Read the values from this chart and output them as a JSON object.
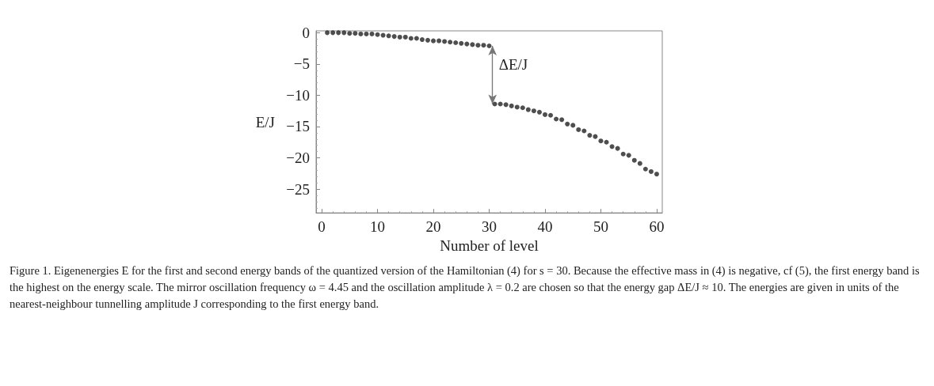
{
  "chart_data": {
    "type": "scatter",
    "xlabel": "Number of level",
    "ylabel": "E/J",
    "x": [
      1,
      2,
      3,
      4,
      5,
      6,
      7,
      8,
      9,
      10,
      11,
      12,
      13,
      14,
      15,
      16,
      17,
      18,
      19,
      20,
      21,
      22,
      23,
      24,
      25,
      26,
      27,
      28,
      29,
      30,
      31,
      32,
      33,
      34,
      35,
      36,
      37,
      38,
      39,
      40,
      41,
      42,
      43,
      44,
      45,
      46,
      47,
      48,
      49,
      50,
      51,
      52,
      53,
      54,
      55,
      56,
      57,
      58,
      59,
      60
    ],
    "series": [
      {
        "color": "#222222",
        "values": [
          0,
          0,
          0,
          0,
          -0.1,
          -0.1,
          -0.2,
          -0.2,
          -0.2,
          -0.3,
          -0.4,
          -0.5,
          -0.6,
          -0.7,
          -0.7,
          -0.9,
          -0.9,
          -1.1,
          -1.2,
          -1.3,
          -1.3,
          -1.4,
          -1.5,
          -1.6,
          -1.7,
          -1.8,
          -1.9,
          -2.0,
          -2.0,
          -2.1,
          -11.4,
          -11.4,
          -11.5,
          -11.7,
          -11.9,
          -12.0,
          -12.3,
          -12.5,
          -12.7,
          -13.1,
          -13.2,
          -13.8,
          -13.9,
          -14.6,
          -14.8,
          -15.5,
          -15.7,
          -16.4,
          -16.6,
          -17.3,
          -17.5,
          -18.2,
          -18.5,
          -19.4,
          -19.6,
          -20.4,
          -20.9,
          -21.8,
          -22.2,
          -22.6
        ]
      }
    ],
    "xlim": [
      -1,
      61
    ],
    "xticks": [
      0,
      10,
      20,
      30,
      40,
      50,
      60
    ],
    "ylim": [
      -28.8,
      0.3
    ],
    "yticks": [
      0,
      -5,
      -10,
      -15,
      -20,
      -25
    ],
    "marker": "circle",
    "grid": false,
    "annotations": [
      "ΔE/J",
      "Figure 1. Eigenenergies E for the first and second energy bands of the quantized version of the Hamiltonian (4) for s = 30. Because the effective mass in (4) is negative, cf (5), the first energy band is the highest on the energy scale. The mirror oscillation frequency ω = 4.45 and the oscillation amplitude λ = 0.2 are chosen so that the energy gap ΔE/J ≈ 10. The energies are given in units of the nearest-neighbour tunnelling amplitude J corresponding to the first energy band."
    ]
  }
}
